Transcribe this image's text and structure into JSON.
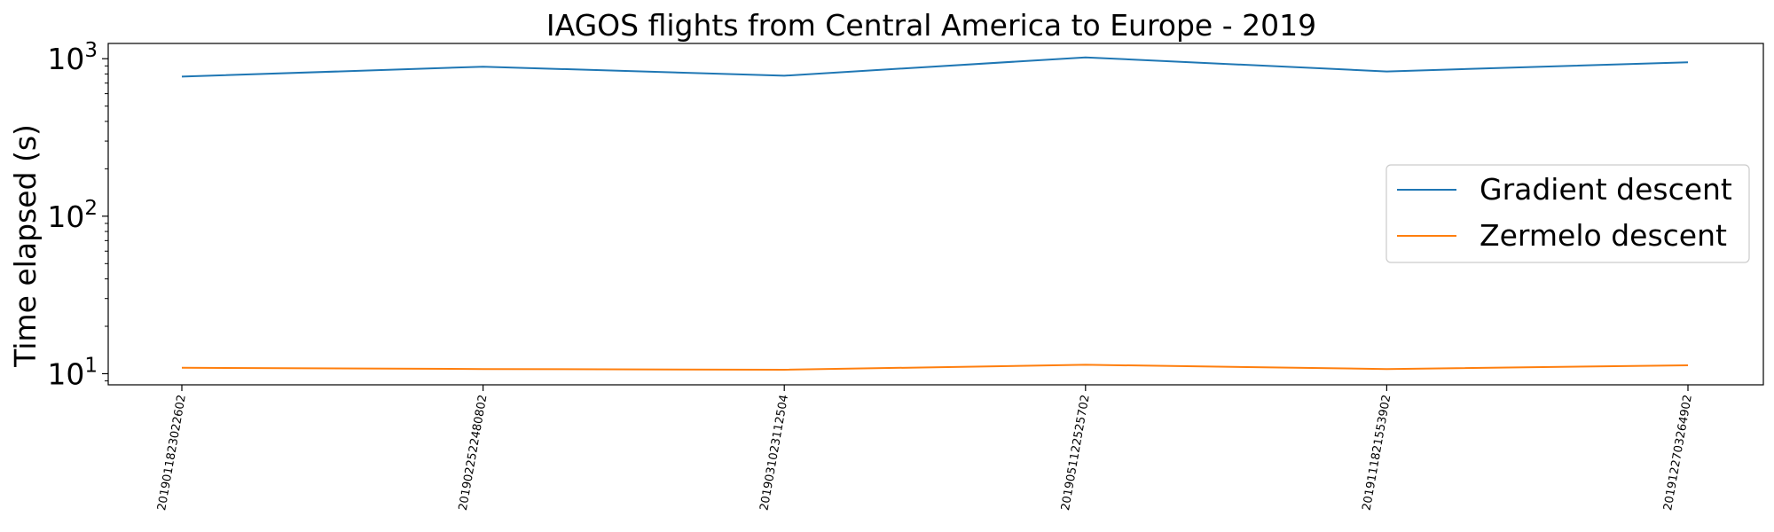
{
  "chart_data": {
    "type": "line",
    "title": "IAGOS flights from Central America to Europe - 2019",
    "xlabel": "",
    "ylabel": "Time elapsed (s)",
    "yscale": "log",
    "ylim": [
      8.5,
      1250
    ],
    "yticks": [
      10,
      100,
      1000
    ],
    "ytick_labels": [
      {
        "base": "10",
        "exp": "1"
      },
      {
        "base": "10",
        "exp": "2"
      },
      {
        "base": "10",
        "exp": "3"
      }
    ],
    "categories": [
      "2019011823022602",
      "2019022522480802",
      "2019031023112504",
      "2019051122525702",
      "2019111821553902",
      "2019122703264902"
    ],
    "series": [
      {
        "name": "Gradient descent",
        "color": "#1f77b4",
        "values": [
          770,
          890,
          780,
          1020,
          830,
          950
        ]
      },
      {
        "name": "Zermelo descent",
        "color": "#ff7f0e",
        "values": [
          10.9,
          10.7,
          10.6,
          11.4,
          10.7,
          11.3
        ]
      }
    ],
    "legend_position": "center-right",
    "grid": false
  }
}
